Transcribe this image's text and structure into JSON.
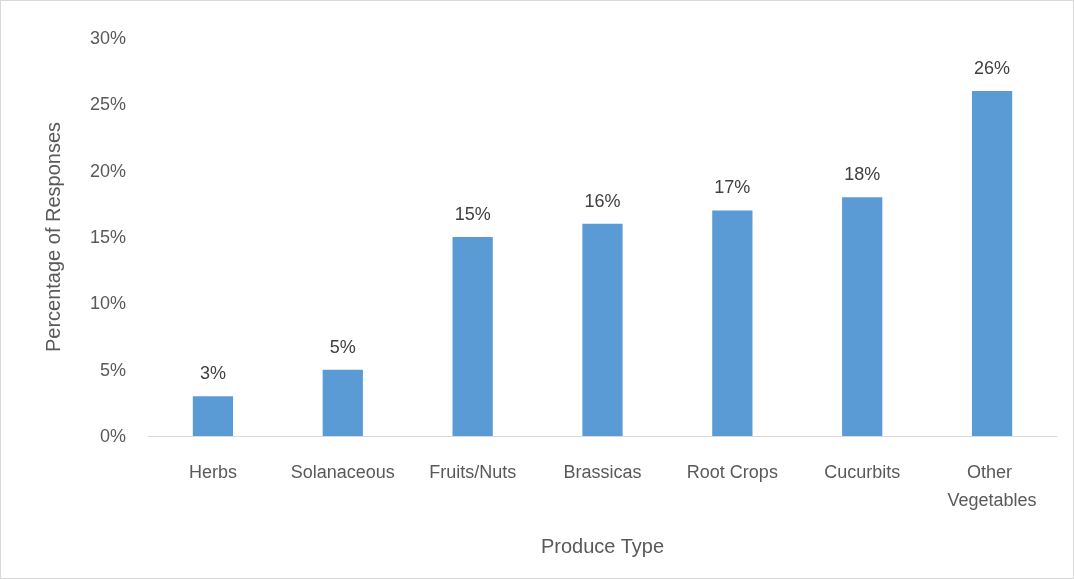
{
  "chart_data": {
    "type": "bar",
    "xlabel": "Produce Type",
    "ylabel": "Percentage of Responses",
    "categories": [
      "Herbs",
      "Solanaceous",
      "Fruits/Nuts",
      "Brassicas",
      "Root Crops",
      "Cucurbits",
      "Other Vegetables"
    ],
    "values": [
      3,
      5,
      15,
      16,
      17,
      18,
      26
    ],
    "value_labels": [
      "3%",
      "5%",
      "15%",
      "16%",
      "17%",
      "18%",
      "26%"
    ],
    "color": "#5b9bd5",
    "ylim": [
      0,
      30
    ],
    "yticks": [
      {
        "value": 0,
        "label": "0%"
      },
      {
        "value": 5,
        "label": "5%"
      },
      {
        "value": 10,
        "label": "10%"
      },
      {
        "value": 15,
        "label": "15%"
      },
      {
        "value": 20,
        "label": "20%"
      },
      {
        "value": 25,
        "label": "25%"
      },
      {
        "value": 30,
        "label": "30%"
      }
    ],
    "grid": false
  }
}
